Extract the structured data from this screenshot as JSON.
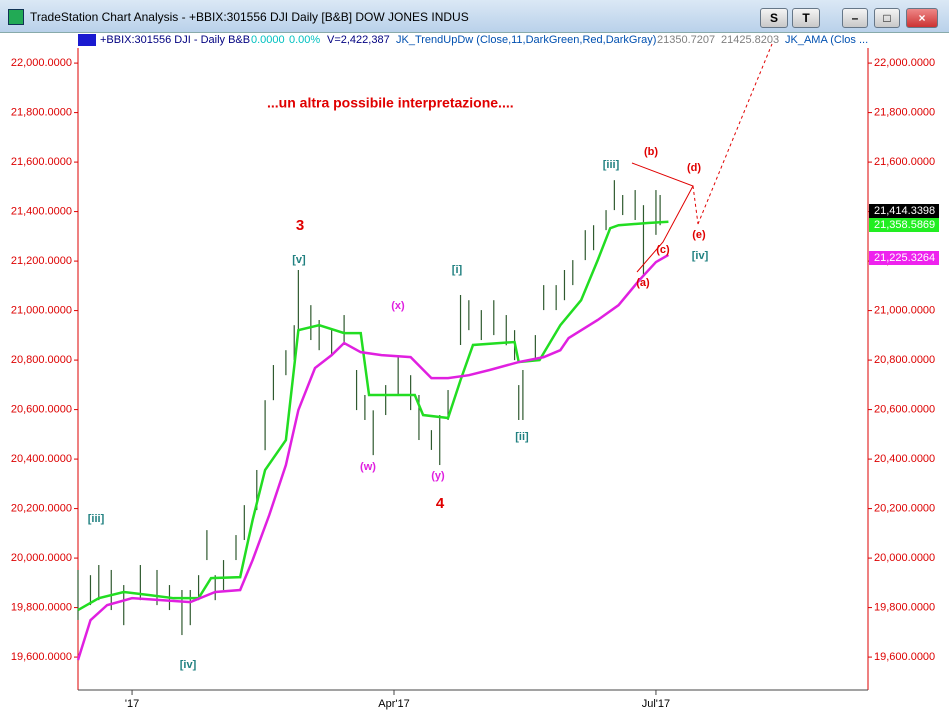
{
  "window": {
    "title": "TradeStation Chart Analysis - +BBIX:301556 DJI Daily [B&B] DOW JONES INDUS",
    "buttons": [
      "S",
      "T"
    ]
  },
  "info_bar": {
    "symbol": "+BBIX:301556 DJI - Daily  B&B",
    "change": "0.0000",
    "change_pct": "0.00%",
    "volume": "V=2,422,387",
    "indicator1": "JK_TrendUpDw (Close,11,DarkGreen,Red,DarkGray)",
    "value1": "21350.7207",
    "value2": "21425.8203",
    "indicator2": "JK_AMA (Clos ..."
  },
  "annotation": "...un altra possibile interpretazione....",
  "wave_labels": [
    "3",
    "[v]",
    "(x)",
    "[i]",
    "(w)",
    "(y)",
    "4",
    "[ii]",
    "[iii]",
    "(b)",
    "(d)",
    "(c)",
    "(e)",
    "(a)",
    "[iv]",
    "[iii]",
    "[iv]"
  ],
  "price_labels": [
    "21,414.3398",
    "21,358.5869",
    "21,225.3264"
  ],
  "chart_data": {
    "type": "hilo",
    "xlim": [
      0,
      190
    ],
    "ylim": [
      19467,
      22061
    ],
    "xticks": [
      {
        "value": 13,
        "label": "'17"
      },
      {
        "value": 76,
        "label": "Apr'17"
      },
      {
        "value": 139,
        "label": "Jul'17"
      }
    ],
    "yticks": [
      {
        "value": 19600,
        "label": "19,600.0000"
      },
      {
        "value": 19800,
        "label": "19,800.0000"
      },
      {
        "value": 20000,
        "label": "20,000.0000"
      },
      {
        "value": 20200,
        "label": "20,200.0000"
      },
      {
        "value": 20400,
        "label": "20,400.0000"
      },
      {
        "value": 20600,
        "label": "20,600.0000"
      },
      {
        "value": 20800,
        "label": "20,800.0000"
      },
      {
        "value": 21000,
        "label": "21,000.0000"
      },
      {
        "value": 21200,
        "label": "21,200.0000"
      },
      {
        "value": 21400,
        "label": "21,400.0000"
      },
      {
        "value": 21600,
        "label": "21,600.0000"
      },
      {
        "value": 21800,
        "label": "21,800.0000"
      },
      {
        "value": 22000,
        "label": "22,000.0000"
      }
    ],
    "bars": {
      "color": "#2f5a2f",
      "x": [
        0,
        3,
        5,
        8,
        11,
        15,
        19,
        22,
        25,
        27,
        29,
        31,
        33,
        35,
        38,
        40,
        43,
        45,
        47,
        50,
        52,
        53,
        56,
        58,
        61,
        64,
        67,
        69,
        71,
        74,
        77,
        80,
        82,
        85,
        87,
        89,
        92,
        94,
        97,
        100,
        103,
        105,
        106,
        107,
        110,
        112,
        115,
        117,
        119,
        122,
        124,
        127,
        129,
        131,
        134,
        136,
        139,
        140
      ],
      "high": [
        19952,
        19931,
        19972,
        19952,
        19891,
        19972,
        19952,
        19891,
        19871,
        19871,
        19931,
        20113,
        19931,
        19992,
        20093,
        20214,
        20356,
        20638,
        20780,
        20840,
        20941,
        21164,
        21022,
        20962,
        20921,
        20982,
        20760,
        20659,
        20597,
        20699,
        20820,
        20739,
        20659,
        20517,
        20578,
        20679,
        21063,
        21042,
        21002,
        21042,
        20982,
        20921,
        20699,
        20760,
        20901,
        21103,
        21103,
        21164,
        21204,
        21325,
        21345,
        21406,
        21527,
        21467,
        21487,
        21426,
        21487,
        21467
      ],
      "low": [
        19750,
        19810,
        19830,
        19790,
        19729,
        19830,
        19810,
        19790,
        19689,
        19729,
        19830,
        19992,
        19830,
        19871,
        19992,
        20073,
        20194,
        20436,
        20638,
        20739,
        20800,
        20921,
        20881,
        20840,
        20820,
        20861,
        20598,
        20558,
        20416,
        20578,
        20659,
        20598,
        20477,
        20437,
        20376,
        20558,
        20861,
        20921,
        20881,
        20901,
        20860,
        20800,
        20558,
        20558,
        20800,
        21002,
        21002,
        21042,
        21103,
        21204,
        21244,
        21325,
        21406,
        21386,
        21366,
        21145,
        21306,
        21345
      ]
    },
    "series": [
      {
        "color": "#22dd22",
        "x": [
          0,
          5,
          11,
          17,
          23,
          29,
          32,
          39,
          42,
          45,
          50,
          53,
          58,
          64,
          68,
          70,
          81,
          83,
          89,
          92,
          95,
          105,
          106,
          111,
          116,
          121,
          125,
          128,
          130,
          137,
          142
        ],
        "values": [
          19790,
          19838,
          19863,
          19851,
          19838,
          19838,
          19919,
          19923,
          20154,
          20356,
          20477,
          20921,
          20941,
          20909,
          20909,
          20659,
          20659,
          20578,
          20566,
          20719,
          20861,
          20873,
          20792,
          20800,
          20941,
          21042,
          21204,
          21333,
          21345,
          21354,
          21359
        ]
      },
      {
        "color": "#e020e0",
        "x": [
          0,
          3,
          7,
          13,
          20,
          27,
          33,
          39,
          42,
          46,
          50,
          53,
          57,
          61,
          64,
          68,
          73,
          80,
          85,
          89,
          94,
          99,
          106,
          112,
          116,
          118,
          125,
          130,
          135,
          139,
          142
        ],
        "values": [
          19588,
          19749,
          19810,
          19838,
          19830,
          19822,
          19863,
          19871,
          19992,
          20174,
          20376,
          20598,
          20768,
          20820,
          20869,
          20832,
          20820,
          20812,
          20727,
          20727,
          20739,
          20760,
          20792,
          20812,
          20840,
          20889,
          20962,
          21022,
          21123,
          21196,
          21225
        ]
      }
    ]
  }
}
